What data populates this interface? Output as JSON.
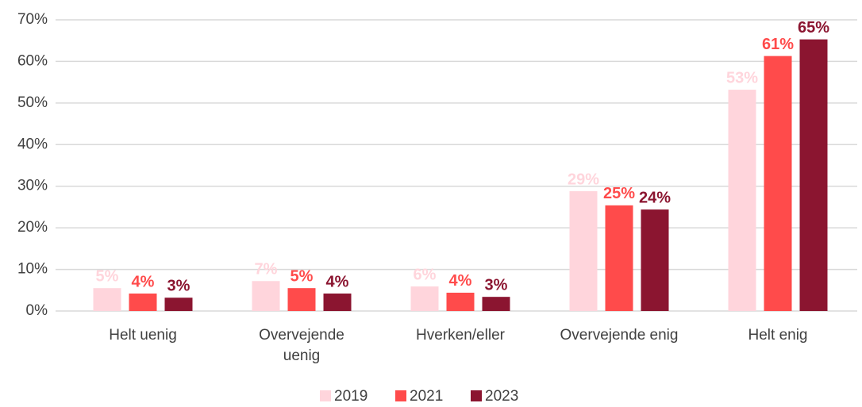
{
  "chart_data": {
    "type": "bar",
    "categories": [
      "Helt uenig",
      "Overvejende\nuenig",
      "Hverken/eller",
      "Overvejende enig",
      "Helt enig"
    ],
    "series": [
      {
        "name": "2019",
        "color": "#ffd5dc",
        "values": [
          5.5,
          7.2,
          5.9,
          28.8,
          53.2
        ],
        "value_labels": [
          "5%",
          "7%",
          "6%",
          "29%",
          "53%"
        ]
      },
      {
        "name": "2021",
        "color": "#ff4b4b",
        "values": [
          4.2,
          5.5,
          4.4,
          25.4,
          61.3
        ],
        "value_labels": [
          "4%",
          "5%",
          "4%",
          "25%",
          "61%"
        ]
      },
      {
        "name": "2023",
        "color": "#8b1530",
        "values": [
          3.2,
          4.2,
          3.4,
          24.4,
          65.3
        ],
        "value_labels": [
          "3%",
          "4%",
          "3%",
          "24%",
          "65%"
        ]
      }
    ],
    "ylim": [
      0,
      70
    ],
    "yticks": [
      {
        "value": 0,
        "label": "0%"
      },
      {
        "value": 10,
        "label": "10%"
      },
      {
        "value": 20,
        "label": "20%"
      },
      {
        "value": 30,
        "label": "30%"
      },
      {
        "value": 40,
        "label": "40%"
      },
      {
        "value": 50,
        "label": "50%"
      },
      {
        "value": 60,
        "label": "60%"
      },
      {
        "value": 70,
        "label": "70%"
      }
    ],
    "grid": true,
    "legend": "bottom"
  }
}
